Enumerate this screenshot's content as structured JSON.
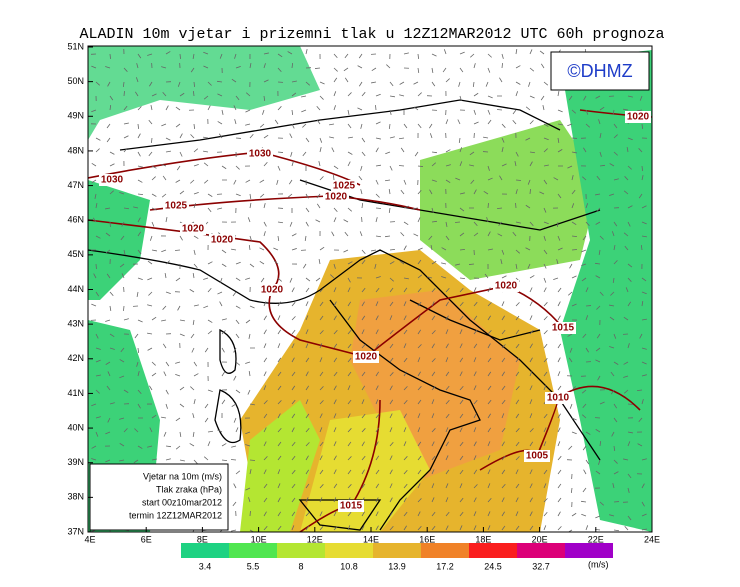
{
  "header": {
    "title": "ALADIN 10m vjetar i prizemni tlak u 12Z12MAR2012 UTC 60h prognoza",
    "logo": "©DHMZ"
  },
  "map": {
    "lat_labels": [
      "51N",
      "50N",
      "49N",
      "48N",
      "47N",
      "46N",
      "45N",
      "44N",
      "43N",
      "42N",
      "41N",
      "40N",
      "39N",
      "38N",
      "37N"
    ],
    "lon_labels": [
      "4E",
      "6E",
      "8E",
      "10E",
      "12E",
      "14E",
      "16E",
      "18E",
      "20E",
      "22E",
      "24E"
    ],
    "isobar_labels": [
      "1030",
      "1030",
      "1025",
      "1020",
      "1025",
      "1020",
      "1020",
      "1020",
      "1020",
      "1020",
      "1020",
      "1015",
      "1010",
      "1005",
      "1015"
    ],
    "info": [
      "Vjetar na 10m (m/s)",
      "Tlak zraka (hPa)",
      "start 00z10mar2012",
      "termin 12Z12MAR2012"
    ]
  },
  "colorbar": {
    "labels": [
      "3.4",
      "5.5",
      "8",
      "10.8",
      "13.9",
      "17.2",
      "24.5",
      "32.7"
    ],
    "unit": "(m/s)",
    "colors": [
      "#1ed282",
      "#50e650",
      "#b4e632",
      "#e6dc32",
      "#e6b42d",
      "#f08228",
      "#fa1e1e",
      "#dc0078",
      "#a000c8"
    ]
  }
}
